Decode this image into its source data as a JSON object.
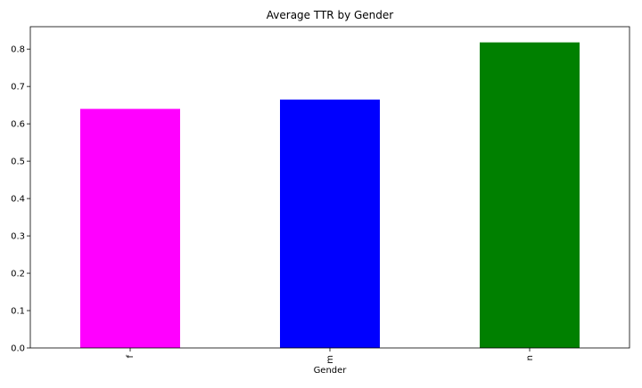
{
  "chart_data": {
    "type": "bar",
    "title": "Average TTR by Gender",
    "xlabel": "Gender",
    "ylabel": "",
    "categories": [
      "f",
      "m",
      "n"
    ],
    "values": [
      0.64,
      0.665,
      0.818
    ],
    "colors": [
      "#ff00ff",
      "#0000ff",
      "#008000"
    ],
    "ylim": [
      0,
      0.86
    ],
    "yticks": [
      0.0,
      0.1,
      0.2,
      0.3,
      0.4,
      0.5,
      0.6,
      0.7,
      0.8
    ],
    "ytick_labels": [
      "0.0",
      "0.1",
      "0.2",
      "0.3",
      "0.4",
      "0.5",
      "0.6",
      "0.7",
      "0.8"
    ],
    "grid": false,
    "legend": "none",
    "xtick_rotation": "vertical"
  }
}
